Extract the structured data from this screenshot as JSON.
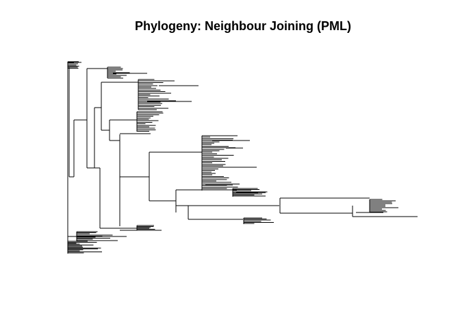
{
  "plot": {
    "title": "Phylogeny: Neighbour Joining (PML)"
  },
  "tree": {
    "type": "phylogram",
    "method": "Neighbour Joining (PML)",
    "tip_labels_visible": false,
    "axes_visible": false,
    "line_color": "#000000",
    "background_color": "#ffffff"
  }
}
